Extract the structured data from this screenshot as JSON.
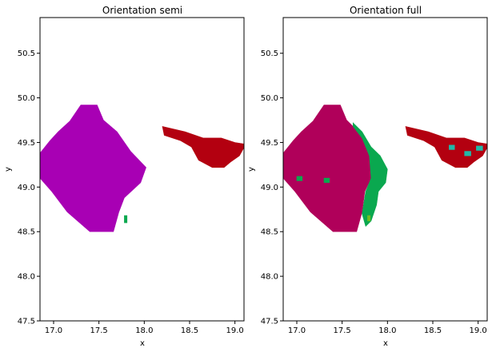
{
  "chart_data": [
    {
      "type": "heatmap",
      "title": "Orientation semi",
      "xlabel": "x",
      "ylabel": "y",
      "xlim": [
        16.85,
        19.1
      ],
      "ylim": [
        47.5,
        50.9
      ],
      "xticks": [
        "17.0",
        "17.5",
        "18.0",
        "18.5",
        "19.0"
      ],
      "yticks": [
        "47.5",
        "48.0",
        "48.5",
        "49.0",
        "49.5",
        "50.0",
        "50.5"
      ],
      "series": [
        {
          "color": "#a800b4",
          "regions": [
            {
              "polygon": [
                [
                  17.3,
                  49.92
                ],
                [
                  17.48,
                  49.92
                ],
                [
                  17.55,
                  49.75
                ],
                [
                  17.7,
                  49.62
                ],
                [
                  17.85,
                  49.4
                ],
                [
                  18.02,
                  49.22
                ],
                [
                  17.96,
                  49.05
                ],
                [
                  17.78,
                  48.88
                ],
                [
                  17.72,
                  48.72
                ],
                [
                  17.66,
                  48.5
                ],
                [
                  17.4,
                  48.5
                ],
                [
                  17.15,
                  48.72
                ],
                [
                  16.98,
                  48.95
                ],
                [
                  16.85,
                  49.1
                ],
                [
                  16.85,
                  49.38
                ],
                [
                  16.96,
                  49.52
                ],
                [
                  17.05,
                  49.62
                ],
                [
                  17.18,
                  49.74
                ]
              ]
            }
          ]
        },
        {
          "color": "#b30010",
          "regions": [
            {
              "polygon": [
                [
                  18.2,
                  49.68
                ],
                [
                  18.45,
                  49.62
                ],
                [
                  18.65,
                  49.55
                ],
                [
                  18.85,
                  49.55
                ],
                [
                  19.0,
                  49.5
                ],
                [
                  19.12,
                  49.48
                ],
                [
                  19.05,
                  49.35
                ],
                [
                  18.95,
                  49.28
                ],
                [
                  18.88,
                  49.22
                ],
                [
                  18.75,
                  49.22
                ],
                [
                  18.6,
                  49.3
                ],
                [
                  18.52,
                  49.45
                ],
                [
                  18.4,
                  49.52
                ],
                [
                  18.22,
                  49.58
                ]
              ]
            }
          ]
        },
        {
          "color": "#0aa84f",
          "regions": [
            {
              "polygon": [
                [
                  17.78,
                  48.68
                ],
                [
                  17.81,
                  48.68
                ],
                [
                  17.81,
                  48.6
                ],
                [
                  17.78,
                  48.6
                ]
              ]
            }
          ]
        }
      ]
    },
    {
      "type": "heatmap",
      "title": "Orientation full",
      "xlabel": "x",
      "ylabel": "y",
      "xlim": [
        16.85,
        19.1
      ],
      "ylim": [
        47.5,
        50.9
      ],
      "xticks": [
        "17.0",
        "17.5",
        "18.0",
        "18.5",
        "19.0"
      ],
      "yticks": [
        "47.5",
        "48.0",
        "48.5",
        "49.0",
        "49.5",
        "50.0",
        "50.5"
      ],
      "series": [
        {
          "color": "#b0005a",
          "regions": [
            {
              "polygon": [
                [
                  17.3,
                  49.92
                ],
                [
                  17.48,
                  49.92
                ],
                [
                  17.55,
                  49.75
                ],
                [
                  17.62,
                  49.68
                ],
                [
                  17.72,
                  49.55
                ],
                [
                  17.8,
                  49.35
                ],
                [
                  17.82,
                  49.1
                ],
                [
                  17.75,
                  48.95
                ],
                [
                  17.72,
                  48.72
                ],
                [
                  17.66,
                  48.5
                ],
                [
                  17.4,
                  48.5
                ],
                [
                  17.15,
                  48.72
                ],
                [
                  16.98,
                  48.95
                ],
                [
                  16.85,
                  49.1
                ],
                [
                  16.85,
                  49.38
                ],
                [
                  16.96,
                  49.52
                ],
                [
                  17.05,
                  49.62
                ],
                [
                  17.18,
                  49.74
                ]
              ]
            }
          ]
        },
        {
          "color": "#0aa84f",
          "regions": [
            {
              "polygon": [
                [
                  17.62,
                  49.72
                ],
                [
                  17.72,
                  49.62
                ],
                [
                  17.82,
                  49.45
                ],
                [
                  17.92,
                  49.35
                ],
                [
                  18.0,
                  49.2
                ],
                [
                  17.98,
                  49.05
                ],
                [
                  17.9,
                  48.95
                ],
                [
                  17.88,
                  48.8
                ],
                [
                  17.82,
                  48.62
                ],
                [
                  17.76,
                  48.56
                ],
                [
                  17.72,
                  48.7
                ],
                [
                  17.76,
                  48.95
                ],
                [
                  17.82,
                  49.1
                ],
                [
                  17.8,
                  49.35
                ],
                [
                  17.72,
                  49.55
                ],
                [
                  17.62,
                  49.68
                ]
              ]
            },
            {
              "polygon": [
                [
                  17.76,
                  48.68
                ],
                [
                  17.79,
                  48.68
                ],
                [
                  17.79,
                  48.6
                ],
                [
                  17.76,
                  48.6
                ]
              ]
            },
            {
              "polygon": [
                [
                  17.3,
                  49.1
                ],
                [
                  17.36,
                  49.1
                ],
                [
                  17.36,
                  49.05
                ],
                [
                  17.3,
                  49.05
                ]
              ]
            },
            {
              "polygon": [
                [
                  17.0,
                  49.12
                ],
                [
                  17.06,
                  49.12
                ],
                [
                  17.06,
                  49.07
                ],
                [
                  17.0,
                  49.07
                ]
              ]
            }
          ]
        },
        {
          "color": "#b30010",
          "regions": [
            {
              "polygon": [
                [
                  18.2,
                  49.68
                ],
                [
                  18.45,
                  49.62
                ],
                [
                  18.65,
                  49.55
                ],
                [
                  18.85,
                  49.55
                ],
                [
                  19.0,
                  49.5
                ],
                [
                  19.12,
                  49.48
                ],
                [
                  19.05,
                  49.35
                ],
                [
                  18.95,
                  49.28
                ],
                [
                  18.88,
                  49.22
                ],
                [
                  18.75,
                  49.22
                ],
                [
                  18.6,
                  49.3
                ],
                [
                  18.52,
                  49.45
                ],
                [
                  18.4,
                  49.52
                ],
                [
                  18.22,
                  49.58
                ]
              ]
            }
          ]
        },
        {
          "color": "#22b8a8",
          "regions": [
            {
              "polygon": [
                [
                  18.68,
                  49.47
                ],
                [
                  18.74,
                  49.47
                ],
                [
                  18.74,
                  49.42
                ],
                [
                  18.68,
                  49.42
                ]
              ]
            },
            {
              "polygon": [
                [
                  18.85,
                  49.4
                ],
                [
                  18.92,
                  49.4
                ],
                [
                  18.92,
                  49.35
                ],
                [
                  18.85,
                  49.35
                ]
              ]
            },
            {
              "polygon": [
                [
                  18.98,
                  49.46
                ],
                [
                  19.05,
                  49.46
                ],
                [
                  19.05,
                  49.41
                ],
                [
                  18.98,
                  49.41
                ]
              ]
            }
          ]
        },
        {
          "color": "#6fbf1f",
          "regions": [
            {
              "polygon": [
                [
                  17.78,
                  48.68
                ],
                [
                  17.81,
                  48.68
                ],
                [
                  17.81,
                  48.62
                ],
                [
                  17.78,
                  48.62
                ]
              ]
            }
          ]
        }
      ]
    }
  ]
}
